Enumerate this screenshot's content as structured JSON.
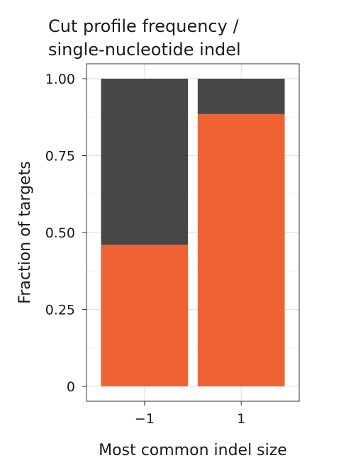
{
  "chart_data": {
    "type": "bar",
    "stacked": true,
    "title": [
      "Cut profile frequency /",
      "single-nucleotide indel"
    ],
    "xlabel": "Most common indel size",
    "ylabel": "Fraction of targets",
    "categories": [
      "−1",
      "1"
    ],
    "ylim": [
      0,
      1
    ],
    "yticks": [
      0,
      0.25,
      0.5,
      0.75,
      1.0
    ],
    "ytick_labels": [
      "0",
      "0.25",
      "0.50",
      "0.75",
      "1.00"
    ],
    "grid": true,
    "legend": "none",
    "series": [
      {
        "values": [
          0.46,
          0.885
        ],
        "color": "#ef6234"
      },
      {
        "values": [
          0.54,
          0.115
        ],
        "color": "#474747"
      }
    ]
  }
}
